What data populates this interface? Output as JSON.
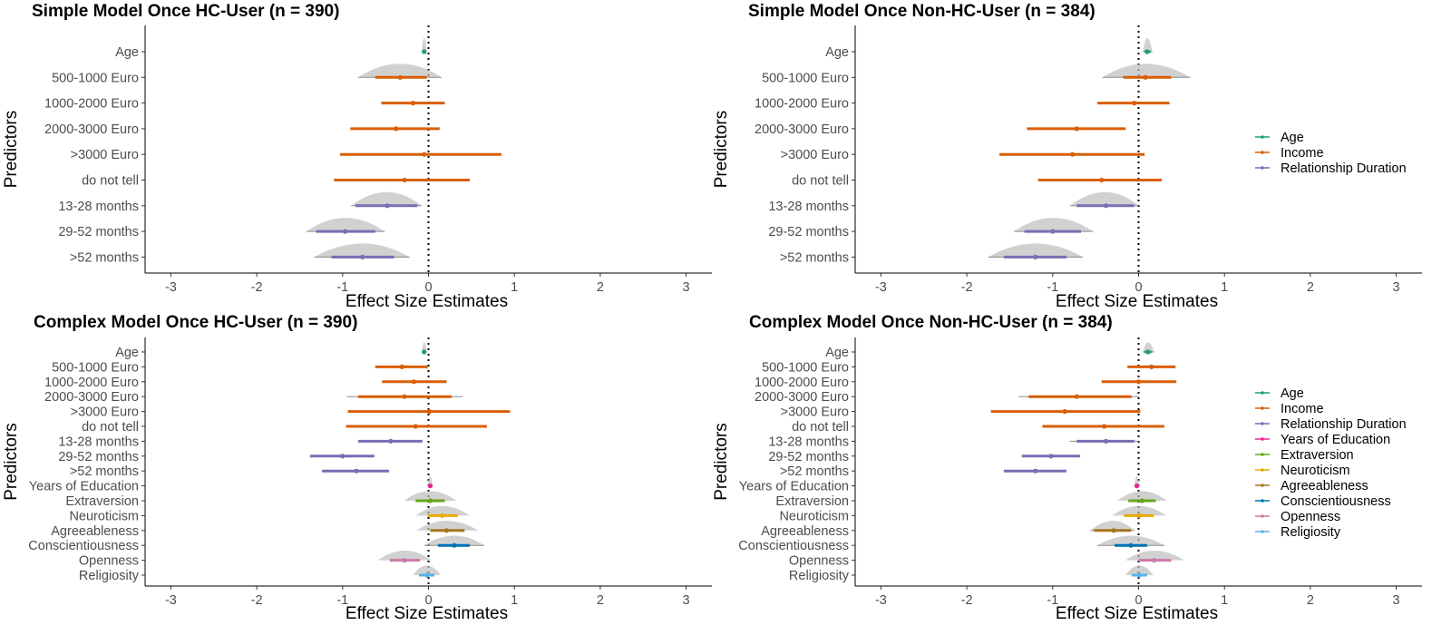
{
  "figure": {
    "x_axis_title": "Effect Size Estimates",
    "y_axis_title": "Predictors",
    "x_ticks": [
      -3,
      -2,
      -1,
      0,
      1,
      2,
      3
    ],
    "xlim": [
      -3.3,
      3.3
    ],
    "reference_line": 0
  },
  "colors": {
    "Age": "#1b9e77",
    "Income": "#d95f02",
    "Relationship Duration": "#7570b3",
    "Years of Education": "#e7298a",
    "Extraversion": "#66a61e",
    "Neuroticism": "#e6ab02",
    "Agreeableness": "#a6761d",
    "Conscientiousness": "#0072b2",
    "Openness": "#cc79a7",
    "Religiosity": "#56b4e9"
  },
  "legends": {
    "simple": [
      "Age",
      "Income",
      "Relationship Duration"
    ],
    "complex": [
      "Age",
      "Income",
      "Relationship Duration",
      "Years of Education",
      "Extraversion",
      "Neuroticism",
      "Agreeableness",
      "Conscientiousness",
      "Openness",
      "Religiosity"
    ]
  },
  "chart_data": [
    {
      "type": "forest",
      "title": "Simple Model Once HC-User (n = 390)",
      "xlabel": "Effect Size Estimates",
      "ylabel": "Predictors",
      "xlim": [
        -3.3,
        3.3
      ],
      "points": [
        {
          "label": "Age",
          "group": "Age",
          "est": -0.05,
          "lo": -0.07,
          "hi": -0.03,
          "lo_outer": -0.08,
          "hi_outer": -0.02,
          "density": true
        },
        {
          "label": "500-1000 Euro",
          "group": "Income",
          "est": -0.33,
          "lo": -0.62,
          "hi": -0.02,
          "lo_outer": -0.82,
          "hi_outer": 0.15,
          "density": true
        },
        {
          "label": "1000-2000 Euro",
          "group": "Income",
          "est": -0.18,
          "lo": -0.55,
          "hi": 0.19
        },
        {
          "label": "2000-3000 Euro",
          "group": "Income",
          "est": -0.38,
          "lo": -0.91,
          "hi": 0.13
        },
        {
          "label": ">3000 Euro",
          "group": "Income",
          "est": -0.05,
          "lo": -1.03,
          "hi": 0.85
        },
        {
          "label": "do not tell",
          "group": "Income",
          "est": -0.28,
          "lo": -1.1,
          "hi": 0.48
        },
        {
          "label": "13-28 months",
          "group": "Relationship Duration",
          "est": -0.48,
          "lo": -0.85,
          "hi": -0.13,
          "lo_outer": -0.9,
          "hi_outer": -0.08,
          "density": true
        },
        {
          "label": "29-52 months",
          "group": "Relationship Duration",
          "est": -0.97,
          "lo": -1.31,
          "hi": -0.62,
          "lo_outer": -1.42,
          "hi_outer": -0.51,
          "density": true
        },
        {
          "label": ">52 months",
          "group": "Relationship Duration",
          "est": -0.77,
          "lo": -1.13,
          "hi": -0.4,
          "lo_outer": -1.33,
          "hi_outer": -0.22,
          "density": true
        }
      ]
    },
    {
      "type": "forest",
      "title": "Simple Model Once Non-HC-User (n = 384)",
      "xlabel": "Effect Size Estimates",
      "ylabel": "Predictors",
      "xlim": [
        -3.3,
        3.3
      ],
      "points": [
        {
          "label": "Age",
          "group": "Age",
          "est": 0.1,
          "lo": 0.07,
          "hi": 0.14,
          "lo_outer": 0.05,
          "hi_outer": 0.16,
          "density": true
        },
        {
          "label": "500-1000 Euro",
          "group": "Income",
          "est": 0.08,
          "lo": -0.18,
          "hi": 0.38,
          "lo_outer": -0.42,
          "hi_outer": 0.6,
          "density": true
        },
        {
          "label": "1000-2000 Euro",
          "group": "Income",
          "est": -0.05,
          "lo": -0.48,
          "hi": 0.36
        },
        {
          "label": "2000-3000 Euro",
          "group": "Income",
          "est": -0.72,
          "lo": -1.3,
          "hi": -0.15
        },
        {
          "label": ">3000 Euro",
          "group": "Income",
          "est": -0.77,
          "lo": -1.62,
          "hi": 0.07
        },
        {
          "label": "do not tell",
          "group": "Income",
          "est": -0.43,
          "lo": -1.17,
          "hi": 0.27
        },
        {
          "label": "13-28 months",
          "group": "Relationship Duration",
          "est": -0.38,
          "lo": -0.72,
          "hi": -0.05,
          "lo_outer": -0.8,
          "hi_outer": 0.0,
          "density": true
        },
        {
          "label": "29-52 months",
          "group": "Relationship Duration",
          "est": -1.0,
          "lo": -1.33,
          "hi": -0.67,
          "lo_outer": -1.45,
          "hi_outer": -0.53,
          "density": true
        },
        {
          "label": ">52 months",
          "group": "Relationship Duration",
          "est": -1.2,
          "lo": -1.57,
          "hi": -0.84,
          "lo_outer": -1.75,
          "hi_outer": -0.65,
          "density": true
        }
      ]
    },
    {
      "type": "forest",
      "title": "Complex Model Once HC-User (n = 390)",
      "xlabel": "Effect Size Estimates",
      "ylabel": "Predictors",
      "xlim": [
        -3.3,
        3.3
      ],
      "points": [
        {
          "label": "Age",
          "group": "Age",
          "est": -0.05,
          "lo": -0.07,
          "hi": -0.03,
          "lo_outer": -0.08,
          "hi_outer": -0.02,
          "density": true
        },
        {
          "label": "500-1000 Euro",
          "group": "Income",
          "est": -0.31,
          "lo": -0.62,
          "hi": -0.01
        },
        {
          "label": "1000-2000 Euro",
          "group": "Income",
          "est": -0.17,
          "lo": -0.54,
          "hi": 0.21
        },
        {
          "label": "2000-3000 Euro",
          "group": "Income",
          "est": -0.28,
          "lo": -0.82,
          "hi": 0.27,
          "lo_outer": -0.95,
          "hi_outer": 0.4
        },
        {
          "label": ">3000 Euro",
          "group": "Income",
          "est": 0.01,
          "lo": -0.94,
          "hi": 0.95
        },
        {
          "label": "do not tell",
          "group": "Income",
          "est": -0.15,
          "lo": -0.96,
          "hi": 0.68
        },
        {
          "label": "13-28 months",
          "group": "Relationship Duration",
          "est": -0.44,
          "lo": -0.82,
          "hi": -0.07
        },
        {
          "label": "29-52 months",
          "group": "Relationship Duration",
          "est": -1.0,
          "lo": -1.38,
          "hi": -0.63
        },
        {
          "label": ">52 months",
          "group": "Relationship Duration",
          "est": -0.84,
          "lo": -1.24,
          "hi": -0.46
        },
        {
          "label": "Years of Education",
          "group": "Years of Education",
          "est": 0.02,
          "lo": 0.0,
          "hi": 0.04,
          "lo_outer": -0.01,
          "hi_outer": 0.05,
          "density": true
        },
        {
          "label": "Extraversion",
          "group": "Extraversion",
          "est": 0.02,
          "lo": -0.15,
          "hi": 0.19,
          "density": true
        },
        {
          "label": "Neuroticism",
          "group": "Neuroticism",
          "est": 0.16,
          "lo": -0.01,
          "hi": 0.34,
          "density": true
        },
        {
          "label": "Agreeableness",
          "group": "Agreeableness",
          "est": 0.21,
          "lo": 0.02,
          "hi": 0.42,
          "density": true
        },
        {
          "label": "Conscientiousness",
          "group": "Conscientiousness",
          "est": 0.3,
          "lo": 0.11,
          "hi": 0.48,
          "lo_outer": -0.05,
          "hi_outer": 0.65,
          "density": true
        },
        {
          "label": "Openness",
          "group": "Openness",
          "est": -0.28,
          "lo": -0.45,
          "hi": -0.1,
          "density": true
        },
        {
          "label": "Religiosity",
          "group": "Religiosity",
          "est": -0.02,
          "lo": -0.11,
          "hi": 0.07,
          "density": true
        }
      ]
    },
    {
      "type": "forest",
      "title": "Complex Model Once Non-HC-User (n = 384)",
      "xlabel": "Effect Size Estimates",
      "ylabel": "Predictors",
      "xlim": [
        -3.3,
        3.3
      ],
      "points": [
        {
          "label": "Age",
          "group": "Age",
          "est": 0.11,
          "lo": 0.07,
          "hi": 0.15,
          "lo_outer": 0.05,
          "hi_outer": 0.18,
          "density": true
        },
        {
          "label": "500-1000 Euro",
          "group": "Income",
          "est": 0.15,
          "lo": -0.13,
          "hi": 0.43
        },
        {
          "label": "1000-2000 Euro",
          "group": "Income",
          "est": 0.0,
          "lo": -0.43,
          "hi": 0.44
        },
        {
          "label": "2000-3000 Euro",
          "group": "Income",
          "est": -0.72,
          "lo": -1.28,
          "hi": -0.08,
          "lo_outer": -1.4,
          "hi_outer": 0.0
        },
        {
          "label": ">3000 Euro",
          "group": "Income",
          "est": -0.86,
          "lo": -1.72,
          "hi": 0.02
        },
        {
          "label": "do not tell",
          "group": "Income",
          "est": -0.4,
          "lo": -1.12,
          "hi": 0.3
        },
        {
          "label": "13-28 months",
          "group": "Relationship Duration",
          "est": -0.38,
          "lo": -0.72,
          "hi": -0.05,
          "lo_outer": -0.8,
          "hi_outer": 0.0
        },
        {
          "label": "29-52 months",
          "group": "Relationship Duration",
          "est": -1.02,
          "lo": -1.36,
          "hi": -0.68
        },
        {
          "label": ">52 months",
          "group": "Relationship Duration",
          "est": -1.2,
          "lo": -1.57,
          "hi": -0.84
        },
        {
          "label": "Years of Education",
          "group": "Years of Education",
          "est": -0.02,
          "lo": -0.04,
          "hi": 0.0,
          "lo_outer": -0.05,
          "hi_outer": 0.01,
          "density": true
        },
        {
          "label": "Extraversion",
          "group": "Extraversion",
          "est": 0.04,
          "lo": -0.12,
          "hi": 0.2,
          "density": true
        },
        {
          "label": "Neuroticism",
          "group": "Neuroticism",
          "est": 0.01,
          "lo": -0.17,
          "hi": 0.18,
          "density": true
        },
        {
          "label": "Agreeableness",
          "group": "Agreeableness",
          "est": -0.29,
          "lo": -0.52,
          "hi": -0.09,
          "lo_outer": -0.56,
          "hi_outer": -0.05,
          "density": true
        },
        {
          "label": "Conscientiousness",
          "group": "Conscientiousness",
          "est": -0.09,
          "lo": -0.28,
          "hi": 0.1,
          "lo_outer": -0.48,
          "hi_outer": 0.3,
          "density": true
        },
        {
          "label": "Openness",
          "group": "Openness",
          "est": 0.18,
          "lo": 0.0,
          "hi": 0.38,
          "density": true
        },
        {
          "label": "Religiosity",
          "group": "Religiosity",
          "est": 0.01,
          "lo": -0.08,
          "hi": 0.1,
          "density": true
        }
      ]
    }
  ]
}
